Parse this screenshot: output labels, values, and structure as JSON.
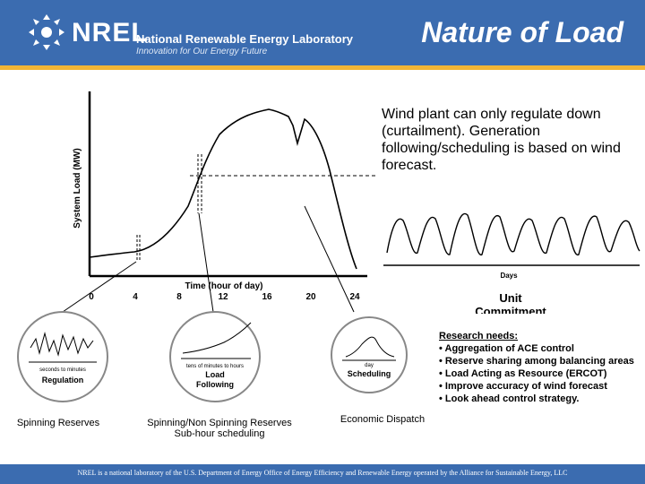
{
  "header": {
    "logo_text": "NREL",
    "lab_name": "National Renewable Energy Laboratory",
    "tagline": "Innovation for Our Energy Future",
    "title": "Nature of Load"
  },
  "load_chart": {
    "ylabel": "System Load (MW)",
    "xlabel": "Time (hour of day)",
    "ticks": [
      "0",
      "4",
      "8",
      "12",
      "16",
      "20",
      "24"
    ]
  },
  "wind_text": "Wind plant can only regulate down (curtailment). Generation following/scheduling is based on wind forecast.",
  "days_chart": {
    "xlabel": "Days"
  },
  "unit_commitment": {
    "line1": "Unit",
    "line2": "Commitment"
  },
  "circles": [
    {
      "inner_top": "seconds to minutes",
      "inner_label": "Regulation",
      "caption_lines": [
        "Spinning Reserves"
      ]
    },
    {
      "inner_top": "tens of minutes to hours",
      "inner_label_1": "Load",
      "inner_label_2": "Following",
      "caption_lines": [
        "Spinning/Non Spinning Reserves",
        "Sub-hour scheduling"
      ]
    },
    {
      "inner_top": "day",
      "inner_label": "Scheduling",
      "caption_lines": [
        "Economic Dispatch"
      ]
    }
  ],
  "research": {
    "title": "Research needs:",
    "items": [
      "• Aggregation of ACE control",
      "• Reserve sharing among balancing areas",
      "• Load Acting as Resource (ERCOT)",
      "• Improve accuracy of wind forecast",
      "• Look ahead control strategy."
    ]
  },
  "footer": "NREL is a national laboratory of the U.S. Department of Energy Office of Energy Efficiency and Renewable Energy operated by the Alliance for Sustainable Energy, LLC",
  "colors": {
    "header_blue": "#3b6cb0",
    "accent_gold": "#f2b535"
  }
}
